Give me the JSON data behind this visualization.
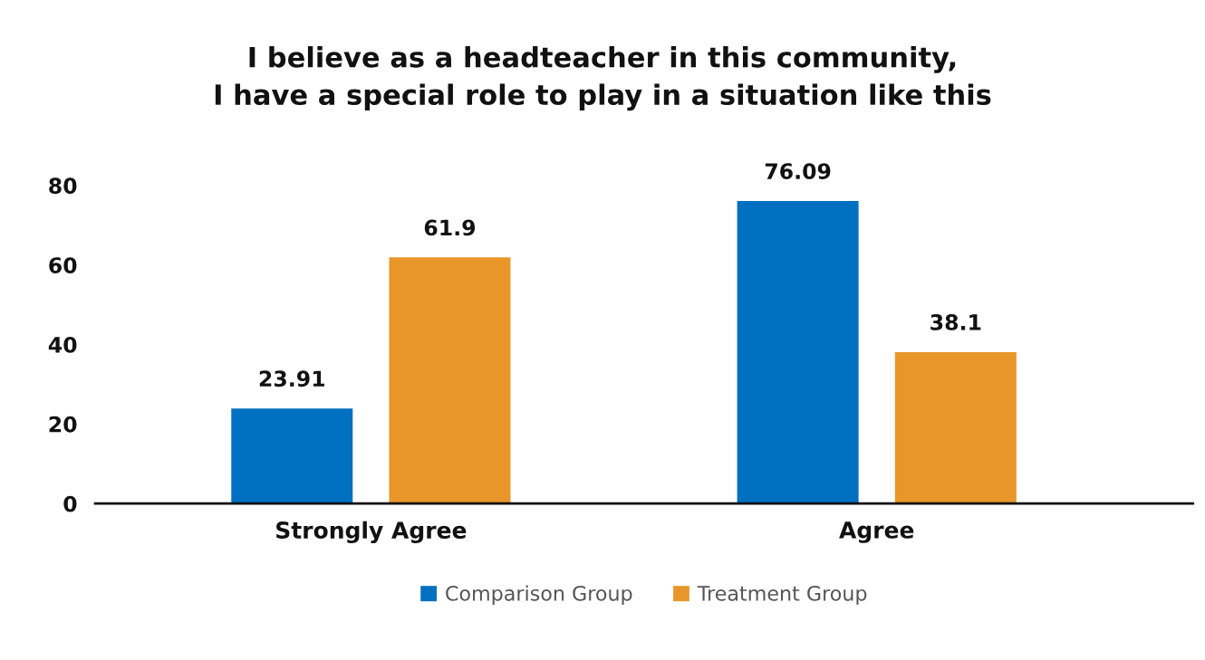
{
  "chart_data": {
    "type": "bar",
    "title": "I believe as a headteacher in this community,\nI have a special role to play in a situation like this",
    "categories": [
      "Strongly Agree",
      "Agree"
    ],
    "series": [
      {
        "name": "Comparison Group",
        "color": "#0070c0",
        "values": [
          23.91,
          76.09
        ]
      },
      {
        "name": "Treatment Group",
        "color": "#e8962a",
        "values": [
          61.9,
          38.1
        ]
      }
    ],
    "ylim": [
      0,
      80
    ],
    "yticks": [
      0,
      20,
      40,
      60,
      80
    ],
    "grid": false,
    "legend": "bottom",
    "data_labels": true
  }
}
